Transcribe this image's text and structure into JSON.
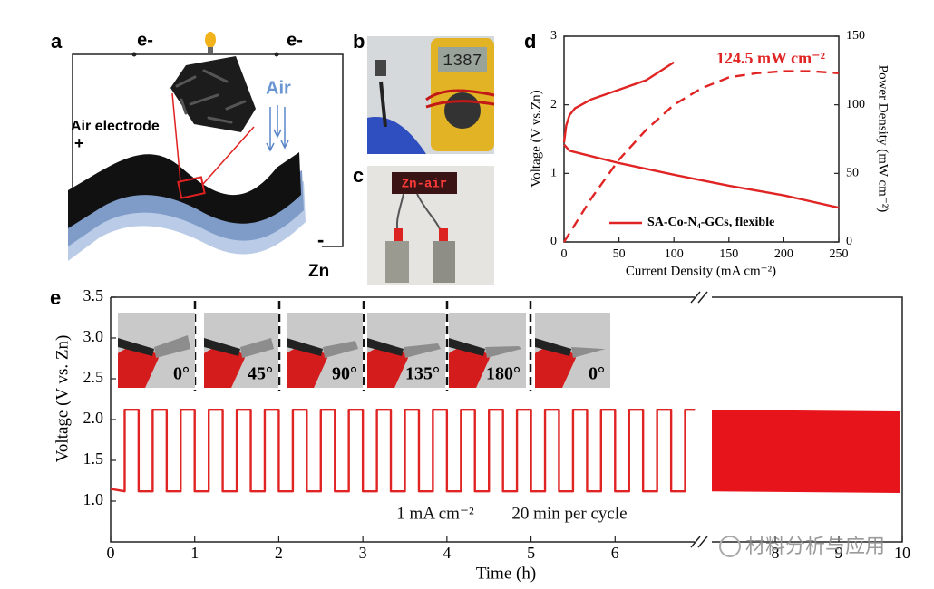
{
  "panels": {
    "a": {
      "label": "a",
      "electron_left": "e-",
      "electron_right": "e-",
      "air": "Air",
      "air_electrode": "Air electrode",
      "positive": "+",
      "negative": "-",
      "anode": "Zn"
    },
    "b": {
      "label": "b",
      "display": "1387"
    },
    "c": {
      "label": "c",
      "display": "Zn-air"
    }
  },
  "chart_data": [
    {
      "type": "line",
      "label": "d",
      "xlabel": "Current Density (mA cm⁻²)",
      "ylabel": "Voltage (V vs.Zn)",
      "y2label": "Power Density (mW cm⁻²)",
      "xlim": [
        0,
        250
      ],
      "xticks": [
        0,
        50,
        100,
        150,
        200,
        250
      ],
      "ylim": [
        0,
        3
      ],
      "yticks": [
        0,
        1,
        2,
        3
      ],
      "y2lim": [
        0,
        150
      ],
      "y2ticks": [
        0,
        50,
        100,
        150
      ],
      "annotations": [
        "124.5 mW cm⁻²"
      ],
      "series": [
        {
          "name": "SA-Co-N₄-GCs, flexible",
          "color": "#e02424",
          "x": [
            0,
            5,
            25,
            50,
            100,
            150,
            200,
            250
          ],
          "values": [
            1.42,
            1.33,
            1.25,
            1.15,
            0.98,
            0.82,
            0.68,
            0.5
          ]
        },
        {
          "color": "#e02424",
          "x": [
            0,
            2,
            5,
            10,
            25,
            50,
            75,
            100
          ],
          "values": [
            1.45,
            1.7,
            1.85,
            1.95,
            2.08,
            2.22,
            2.36,
            2.62
          ]
        },
        {
          "color": "#e02424",
          "axis": "y2",
          "dashed": true,
          "x": [
            0,
            25,
            50,
            75,
            100,
            125,
            150,
            175,
            200,
            225,
            250
          ],
          "values": [
            0,
            32,
            60,
            82,
            100,
            112,
            120,
            123,
            124.5,
            124.5,
            123
          ]
        }
      ]
    },
    {
      "type": "line",
      "label": "e",
      "xlabel": "Time (h)",
      "ylabel": "Voltage (V vs. Zn)",
      "xlim": [
        0,
        7
      ],
      "xticks": [
        0,
        1,
        2,
        3,
        4,
        5,
        6
      ],
      "x2lim": [
        7,
        10
      ],
      "x2ticks": [
        8,
        9,
        10
      ],
      "ylim": [
        0.5,
        3.5
      ],
      "yticks": [
        {
          "value": 1,
          "label": "1.0"
        },
        1.5,
        {
          "value": 2,
          "label": "2.0"
        },
        2.5,
        {
          "value": 3,
          "label": "3.0"
        },
        3.5
      ],
      "annotations": [
        "1 mA cm⁻²",
        "20 min per cycle"
      ],
      "insets": [
        "0°",
        "45°",
        "90°",
        "135°",
        "180°",
        "0°"
      ],
      "series": [
        {
          "color": "#e02424",
          "x": [
            0,
            0.167,
            0.167,
            0.333,
            0.333,
            0.5,
            0.5,
            0.667,
            0.667,
            0.833,
            0.833,
            1,
            1,
            1.167,
            1.167,
            1.333,
            1.333,
            1.5,
            1.5,
            1.667,
            1.667,
            1.833,
            1.833,
            2,
            2,
            2.167,
            2.167,
            2.333,
            2.333,
            2.5,
            2.5,
            2.667,
            2.667,
            2.833,
            2.833,
            3,
            3,
            3.167,
            3.167,
            3.333,
            3.333,
            3.5,
            3.5,
            3.667,
            3.667,
            3.833,
            3.833,
            4,
            4,
            4.167,
            4.167,
            4.333,
            4.333,
            4.5,
            4.5,
            4.667,
            4.667,
            4.833,
            4.833,
            5,
            5,
            5.167,
            5.167,
            5.333,
            5.333,
            5.5,
            5.5,
            5.667,
            5.667,
            5.833,
            5.833,
            6,
            6,
            6.167,
            6.167,
            6.333,
            6.333,
            6.5,
            6.5,
            6.667,
            6.667,
            6.833,
            6.833,
            6.95
          ],
          "values": [
            1.15,
            1.12,
            2.12,
            2.12,
            1.12,
            1.12,
            2.12,
            2.12,
            1.12,
            1.12,
            2.12,
            2.12,
            1.12,
            1.12,
            2.12,
            2.12,
            1.12,
            1.12,
            2.12,
            2.12,
            1.12,
            1.12,
            2.12,
            2.12,
            1.12,
            1.12,
            2.12,
            2.12,
            1.12,
            1.12,
            2.12,
            2.12,
            1.12,
            1.12,
            2.12,
            2.12,
            1.12,
            1.12,
            2.12,
            2.12,
            1.12,
            1.12,
            2.12,
            2.12,
            1.12,
            1.12,
            2.12,
            2.12,
            1.12,
            1.12,
            2.12,
            2.12,
            1.12,
            1.12,
            2.12,
            2.12,
            1.12,
            1.12,
            2.12,
            2.12,
            1.12,
            1.12,
            2.12,
            2.12,
            1.12,
            1.12,
            2.12,
            2.12,
            1.12,
            1.12,
            2.12,
            2.12,
            1.12,
            1.12,
            2.12,
            2.12,
            1.12,
            1.12,
            2.12,
            2.12,
            1.12,
            1.12,
            2.12,
            2.12
          ]
        },
        {
          "color": "#e8141c",
          "x": [
            7,
            9.97
          ],
          "upper": [
            2.12,
            2.1
          ],
          "lower": [
            1.12,
            1.1
          ]
        }
      ]
    }
  ],
  "watermark": "材料分析与应用"
}
